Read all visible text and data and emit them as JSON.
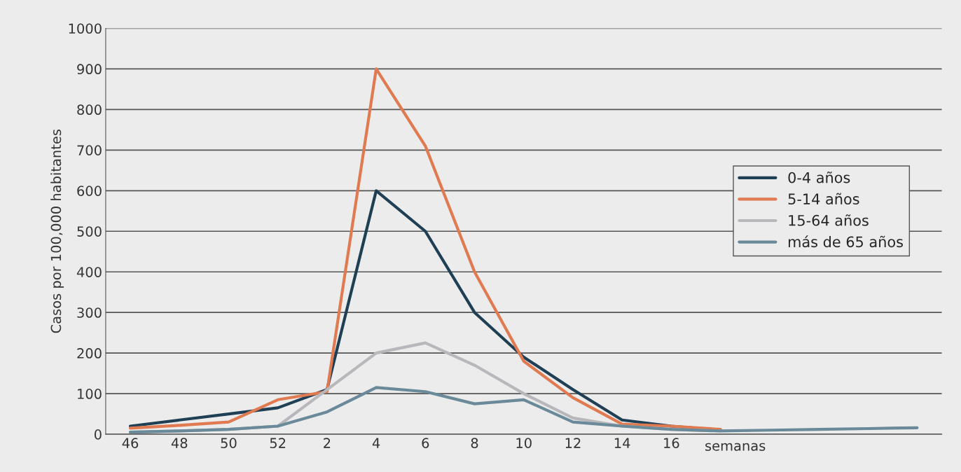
{
  "chart_data": {
    "type": "line",
    "ylabel": "Casos por 100,000 habitantes",
    "xlabel": "semanas",
    "categories": [
      "46",
      "48",
      "50",
      "52",
      "2",
      "4",
      "6",
      "8",
      "10",
      "12",
      "14",
      "16",
      null,
      null,
      null,
      null,
      null
    ],
    "series": [
      {
        "name": "0-4 años",
        "color": "#1f3f55",
        "values": [
          20,
          35,
          50,
          65,
          110,
          600,
          500,
          300,
          190,
          110,
          35,
          20,
          10,
          null,
          null,
          null,
          null
        ]
      },
      {
        "name": "5-14 años",
        "color": "#e07a50",
        "values": [
          15,
          22,
          30,
          85,
          105,
          900,
          710,
          400,
          180,
          90,
          25,
          20,
          12,
          null,
          null,
          null,
          null
        ]
      },
      {
        "name": "15-64 años",
        "color": "#b8b8bc",
        "values": [
          5,
          8,
          12,
          20,
          110,
          200,
          225,
          170,
          100,
          40,
          20,
          12,
          8,
          null,
          null,
          null,
          null
        ]
      },
      {
        "name": "más de 65 años",
        "color": "#6a8a9a",
        "values": [
          5,
          8,
          12,
          20,
          55,
          115,
          105,
          75,
          85,
          30,
          20,
          12,
          8,
          10,
          12,
          14,
          16
        ]
      }
    ],
    "ylim": [
      0,
      1000
    ],
    "yticks": [
      0,
      100,
      200,
      300,
      400,
      500,
      600,
      700,
      800,
      900,
      1000
    ],
    "grid": "y",
    "legend": "right",
    "line_style": "solid",
    "marker": "none"
  }
}
